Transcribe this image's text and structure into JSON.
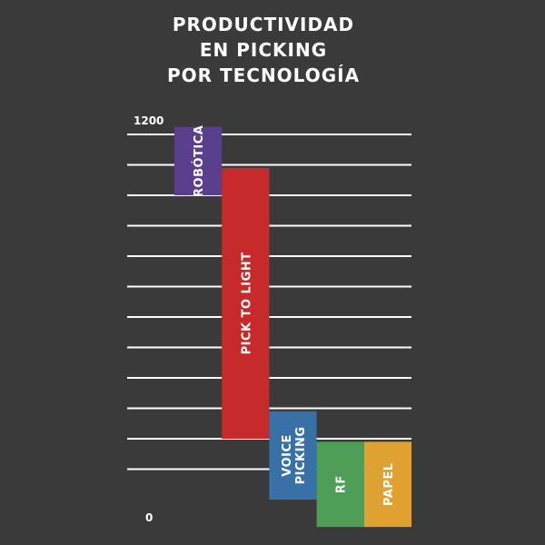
{
  "chart_data": {
    "type": "bar",
    "subtype": "floating-range",
    "title_lines": [
      "PRODUCTIVIDAD",
      "EN PICKING",
      "POR TECNOLOGÍA"
    ],
    "ylim": [
      0,
      1200
    ],
    "yticks": [
      {
        "value": 1200,
        "label": "1200"
      },
      {
        "value": 0,
        "label": "0"
      }
    ],
    "grid": true,
    "gridline_count": 12,
    "categories": [
      {
        "label_lines": [
          "ROBÓTICA"
        ],
        "low": 1000,
        "high": 1225,
        "color": "#5b3f8f"
      },
      {
        "label_lines": [
          "PICK TO LIGHT"
        ],
        "low": 200,
        "high": 1090,
        "color": "#c62a2a"
      },
      {
        "label_lines": [
          "VOICE",
          "PICKING"
        ],
        "low": 0,
        "high": 290,
        "color": "#3871a8"
      },
      {
        "label_lines": [
          "RF"
        ],
        "low": -90,
        "high": 190,
        "color": "#4e9e58"
      },
      {
        "label_lines": [
          "PAPEL"
        ],
        "low": -90,
        "high": 190,
        "color": "#dfa231"
      }
    ]
  }
}
